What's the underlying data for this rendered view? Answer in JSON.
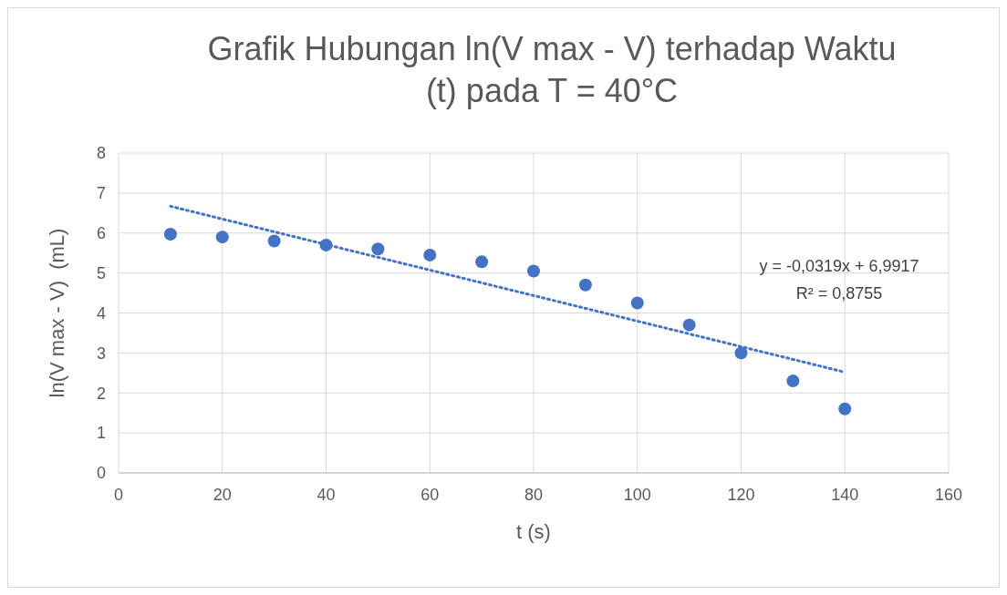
{
  "chart_data": {
    "type": "scatter",
    "title": "Grafik Hubungan ln(V max - V) terhadap Waktu (t) pada T = 40°C",
    "xlabel": "t (s)",
    "ylabel": "ln(V max - V)  (mL)",
    "x": [
      10,
      20,
      30,
      40,
      50,
      60,
      70,
      80,
      90,
      100,
      110,
      120,
      130,
      140
    ],
    "series": [
      {
        "color": "#4472c4",
        "marker": "circle",
        "values": [
          5.97,
          5.9,
          5.8,
          5.7,
          5.6,
          5.45,
          5.28,
          5.05,
          4.7,
          4.25,
          3.7,
          3.0,
          2.3,
          1.6
        ]
      },
      {
        "type": "line",
        "color": "#4472c4",
        "line_style": "dotted",
        "marker": "none",
        "x": [
          10,
          140
        ],
        "values": [
          6.67,
          2.52
        ]
      }
    ],
    "xlim": [
      0,
      160
    ],
    "xticks": [
      0,
      20,
      40,
      60,
      80,
      100,
      120,
      140,
      160
    ],
    "ylim": [
      0,
      8
    ],
    "yticks": [
      0,
      1,
      2,
      3,
      4,
      5,
      6,
      7,
      8
    ],
    "grid": true,
    "annotations": [
      "y = -0,0319x + 6,9917",
      "R² = 0,8755"
    ]
  }
}
